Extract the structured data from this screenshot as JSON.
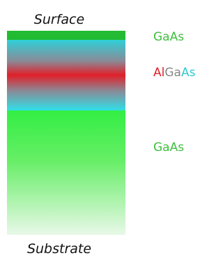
{
  "top_label": "Surface",
  "bottom_label": "Substrate",
  "layers": [
    {
      "label": "GaAs"
    },
    {
      "label_parts": [
        "Al",
        "Ga",
        "As"
      ]
    },
    {
      "label": "GaAs"
    }
  ]
}
